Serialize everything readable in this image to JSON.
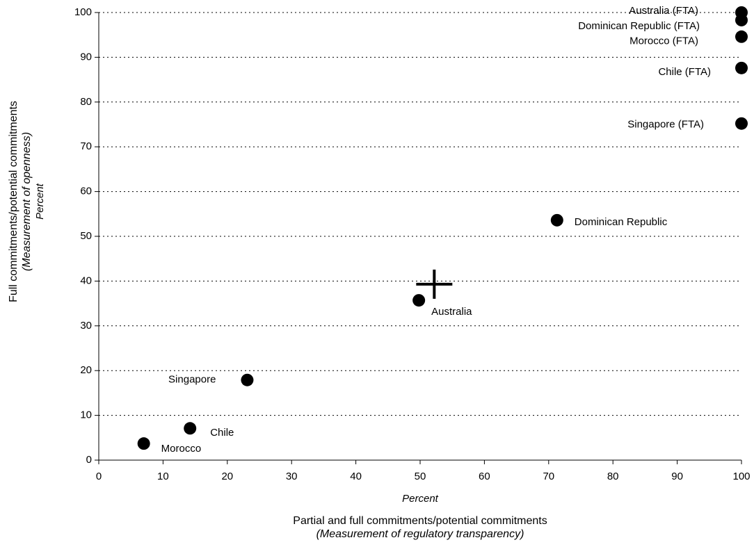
{
  "chart_data": {
    "type": "scatter",
    "x_label": "Partial and full commitments/potential commitments",
    "x_label_note": "(Measurement of regulatory transparency)",
    "x_unit": "Percent",
    "y_label": "Full commitments/potential commitments",
    "y_label_note": "(Measurement of openness)",
    "y_unit": "Percent",
    "xlim": [
      0,
      100
    ],
    "xticks": [
      0,
      10,
      20,
      30,
      40,
      50,
      60,
      70,
      80,
      90,
      100
    ],
    "ylim": [
      0,
      100
    ],
    "yticks": [
      0,
      10,
      20,
      30,
      40,
      50,
      60,
      70,
      80,
      90,
      100
    ],
    "grid": true,
    "series": [
      {
        "marker": "circle",
        "color": "#000000",
        "labels": [
          "Australia (FTA)",
          "Dominican Republic (FTA)",
          "Morocco (FTA)",
          "Chile (FTA)",
          "Singapore (FTA)",
          "Dominican Republic",
          "Australia",
          "Singapore",
          "Chile",
          "Morocco"
        ],
        "x": [
          100,
          100,
          100,
          100,
          100,
          71.3,
          49.8,
          23.1,
          14.2,
          7.0
        ],
        "values": [
          100,
          98.3,
          94.6,
          87.6,
          75.2,
          53.6,
          35.7,
          17.9,
          7.1,
          3.7
        ]
      },
      {
        "marker": "cross",
        "color": "#000000",
        "x": [
          52.2
        ],
        "values": [
          39.3
        ]
      }
    ]
  }
}
